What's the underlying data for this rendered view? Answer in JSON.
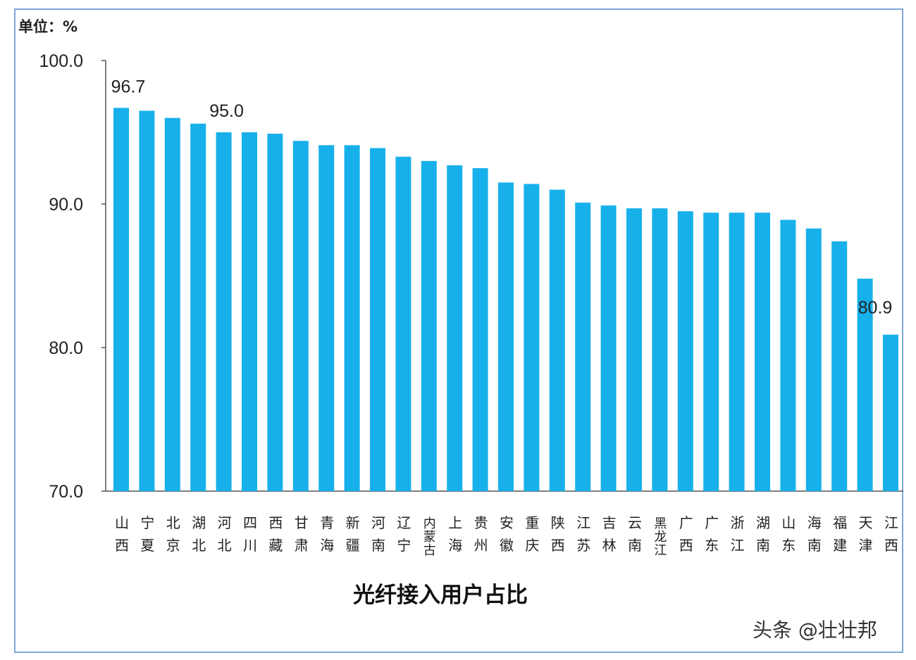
{
  "chart_data": {
    "type": "bar",
    "title": "光纤接入用户占比",
    "unit_label": "单位：%",
    "ylabel": "",
    "xlabel": "",
    "ylim": [
      70,
      100
    ],
    "yticks": [
      "70.0",
      "80.0",
      "90.0",
      "100.0"
    ],
    "grid": false,
    "bar_color": "#17b0ea",
    "categories": [
      "山西",
      "宁夏",
      "北京",
      "湖北",
      "河北",
      "四川",
      "西藏",
      "甘肃",
      "青海",
      "新疆",
      "河南",
      "辽宁",
      "内蒙古",
      "上海",
      "贵州",
      "安徽",
      "重庆",
      "陕西",
      "江苏",
      "吉林",
      "云南",
      "黑龙江",
      "广西",
      "广东",
      "浙江",
      "湖南",
      "山东",
      "海南",
      "福建",
      "天津",
      "江西"
    ],
    "values": [
      96.7,
      96.5,
      96.0,
      95.6,
      95.0,
      95.0,
      94.9,
      94.4,
      94.1,
      94.1,
      93.9,
      93.3,
      93.0,
      92.7,
      92.5,
      91.5,
      91.4,
      91.0,
      90.1,
      89.9,
      89.7,
      89.7,
      89.5,
      89.4,
      89.4,
      89.4,
      88.9,
      88.3,
      87.4,
      84.8,
      80.9
    ],
    "data_labels": [
      {
        "index": 0,
        "text": "96.7"
      },
      {
        "index": 4,
        "text": "95.0"
      },
      {
        "index": 30,
        "text": "80.9"
      }
    ]
  },
  "watermark": "头条 @壮壮邦"
}
